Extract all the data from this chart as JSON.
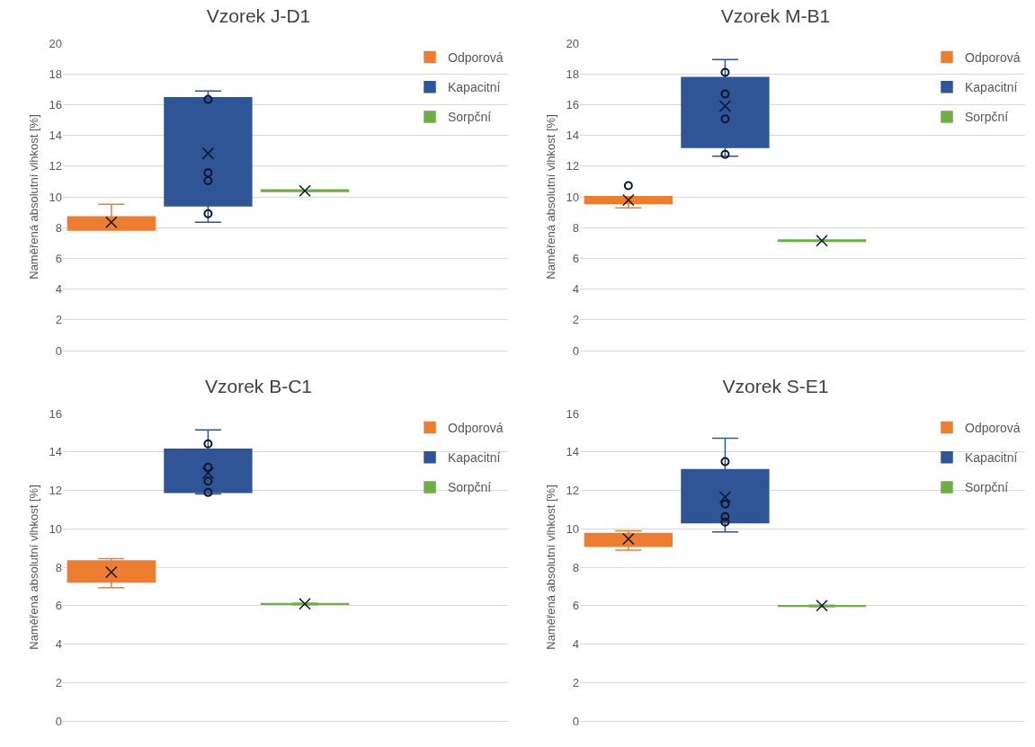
{
  "chart_data": [
    {
      "type": "box",
      "title": "Vzorek J-D1",
      "ylabel": "Naměřená absolutní vlhkost [%]",
      "categories": [
        null
      ],
      "ylim": [
        0,
        20
      ],
      "yticks": [
        0,
        2,
        4,
        6,
        8,
        10,
        12,
        14,
        16,
        18,
        20
      ],
      "grid": "y",
      "legend": "top right",
      "tick_labels": "y",
      "marker": "circle",
      "series": [
        {
          "name": "Odporová",
          "color": "#ed7d31",
          "boxes": [
            {
              "low": 7.83,
              "q1": 7.83,
              "median": 8.16,
              "q3": 8.7,
              "high": 9.52,
              "mean": 8.35
            }
          ]
        },
        {
          "name": "Kapacitní",
          "color": "#2f5597",
          "boxes": [
            {
              "low": 8.35,
              "q1": 9.42,
              "median": 12.21,
              "q3": 16.45,
              "high": 16.88,
              "mean": 12.83,
              "outliers": [
                16.34,
                11.57,
                11.05,
                8.9
              ]
            }
          ]
        },
        {
          "name": "Sorpční",
          "color": "#70ad47",
          "boxes": [
            {
              "low": 10.35,
              "q1": 10.35,
              "median": 10.4,
              "q3": 10.45,
              "high": 10.45,
              "mean": 10.4
            }
          ]
        }
      ]
    },
    {
      "type": "box",
      "title": "Vzorek M-B1",
      "ylabel": "Naměřená absolutní vlhkost [%]",
      "categories": [
        null
      ],
      "ylim": [
        0,
        20
      ],
      "yticks": [
        0,
        2,
        4,
        6,
        8,
        10,
        12,
        14,
        16,
        18,
        20
      ],
      "grid": "y",
      "legend": "top right",
      "tick_labels": "y",
      "marker": "circle",
      "series": [
        {
          "name": "Odporová",
          "color": "#ed7d31",
          "boxes": [
            {
              "low": 9.29,
              "q1": 9.56,
              "median": 9.78,
              "q3": 10.01,
              "high": 10.01,
              "mean": 9.8,
              "outliers": [
                10.73
              ]
            }
          ]
        },
        {
          "name": "Kapacitní",
          "color": "#2f5597",
          "boxes": [
            {
              "low": 12.64,
              "q1": 13.22,
              "median": 16.32,
              "q3": 17.76,
              "high": 18.93,
              "mean": 15.91,
              "outliers": [
                18.1,
                16.69,
                15.07,
                12.76
              ]
            }
          ]
        },
        {
          "name": "Sorpční",
          "color": "#70ad47",
          "boxes": [
            {
              "low": 7.1,
              "q1": 7.1,
              "median": 7.15,
              "q3": 7.2,
              "high": 7.2,
              "mean": 7.15
            }
          ]
        }
      ]
    },
    {
      "type": "box",
      "title": "Vzorek B-C1",
      "ylabel": "Naměřená absolutní vlhkost [%]",
      "categories": [
        null
      ],
      "ylim": [
        0,
        16
      ],
      "yticks": [
        0,
        2,
        4,
        6,
        8,
        10,
        12,
        14,
        16
      ],
      "grid": "y",
      "legend": "top right",
      "tick_labels": "y",
      "marker": "circle",
      "series": [
        {
          "name": "Odporová",
          "color": "#ed7d31",
          "boxes": [
            {
              "low": 6.93,
              "q1": 7.23,
              "median": 7.74,
              "q3": 8.33,
              "high": 8.44,
              "mean": 7.74
            }
          ]
        },
        {
          "name": "Kapacitní",
          "color": "#2f5597",
          "boxes": [
            {
              "low": 11.81,
              "q1": 11.89,
              "median": 12.68,
              "q3": 14.14,
              "high": 15.15,
              "mean": 12.9,
              "outliers": [
                14.42,
                13.2,
                12.48,
                11.89
              ]
            }
          ]
        },
        {
          "name": "Sorpční",
          "color": "#70ad47",
          "boxes": [
            {
              "low": 6.05,
              "q1": 6.07,
              "median": 6.09,
              "q3": 6.11,
              "high": 6.13,
              "mean": 6.09
            }
          ]
        }
      ]
    },
    {
      "type": "box",
      "title": "Vzorek S-E1",
      "ylabel": "Naměřená absolutní vlhkost [%]",
      "categories": [
        null
      ],
      "ylim": [
        0,
        16
      ],
      "yticks": [
        0,
        2,
        4,
        6,
        8,
        10,
        12,
        14,
        16
      ],
      "grid": "y",
      "legend": "top right",
      "tick_labels": "y",
      "marker": "circle",
      "series": [
        {
          "name": "Odporová",
          "color": "#ed7d31",
          "boxes": [
            {
              "low": 8.89,
              "q1": 9.09,
              "median": 9.5,
              "q3": 9.76,
              "high": 9.9,
              "mean": 9.47
            }
          ]
        },
        {
          "name": "Kapacitní",
          "color": "#2f5597",
          "boxes": [
            {
              "low": 9.84,
              "q1": 10.32,
              "median": 10.98,
              "q3": 13.08,
              "high": 14.71,
              "mean": 11.65,
              "outliers": [
                13.5,
                11.29,
                10.63,
                10.35
              ]
            }
          ]
        },
        {
          "name": "Sorpční",
          "color": "#70ad47",
          "boxes": [
            {
              "low": 5.94,
              "q1": 5.96,
              "median": 5.98,
              "q3": 6.0,
              "high": 6.02,
              "mean": 6.0
            }
          ]
        }
      ]
    }
  ]
}
